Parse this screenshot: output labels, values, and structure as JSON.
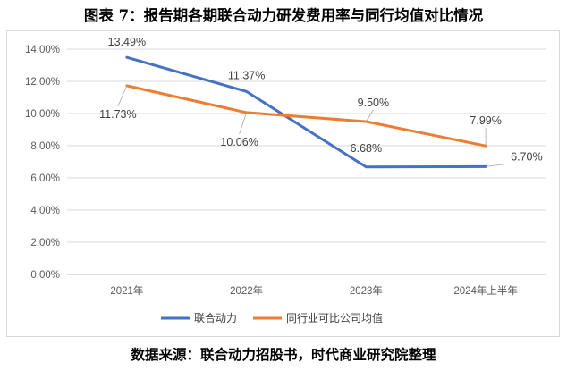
{
  "title": "图表 7：报告期各期联合动力研发费用率与同行均值对比情况",
  "source": "数据来源：联合动力招股书，时代商业研究院整理",
  "chart_data": {
    "type": "line",
    "categories": [
      "2021年",
      "2022年",
      "2023年",
      "2024年上半年"
    ],
    "y_ticks": [
      "0.00%",
      "2.00%",
      "4.00%",
      "6.00%",
      "8.00%",
      "10.00%",
      "12.00%",
      "14.00%"
    ],
    "ylim": [
      0,
      14
    ],
    "grid": true,
    "legend_position": "bottom",
    "series": [
      {
        "name": "联合动力",
        "values": [
          13.49,
          11.37,
          6.68,
          6.7
        ],
        "labels": [
          "13.49%",
          "11.37%",
          "6.68%",
          "6.70%"
        ],
        "color": "#4472C4"
      },
      {
        "name": "同行业可比公司均值",
        "values": [
          11.73,
          10.06,
          9.5,
          7.99
        ],
        "labels": [
          "11.73%",
          "10.06%",
          "9.50%",
          "7.99%"
        ],
        "color": "#ED7D31"
      }
    ]
  }
}
